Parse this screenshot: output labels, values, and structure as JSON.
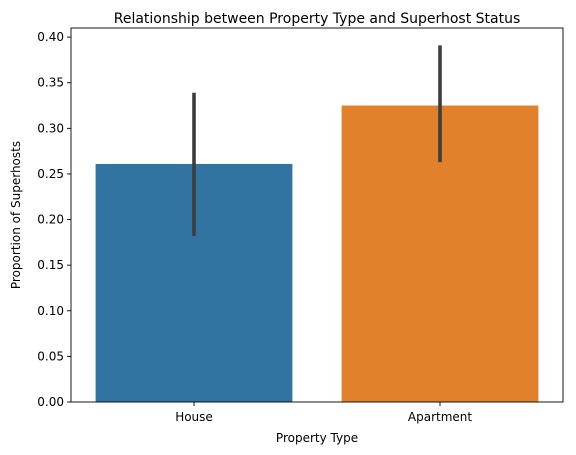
{
  "chart_data": {
    "type": "bar",
    "title": "Relationship between Property Type and Superhost Status",
    "xlabel": "Property Type",
    "ylabel": "Proportion of Superhosts",
    "categories": [
      "House",
      "Apartment"
    ],
    "values": [
      0.261,
      0.325
    ],
    "error_bars": [
      {
        "low": 0.182,
        "high": 0.339
      },
      {
        "low": 0.263,
        "high": 0.391
      }
    ],
    "colors": [
      "#3274a1",
      "#e1812c"
    ],
    "errorbar_color": "#3d3d3d",
    "ylim": [
      0,
      0.41
    ],
    "yticks": [
      "0.00",
      "0.05",
      "0.10",
      "0.15",
      "0.20",
      "0.25",
      "0.30",
      "0.35",
      "0.40"
    ],
    "grid": false,
    "legend": "none"
  }
}
